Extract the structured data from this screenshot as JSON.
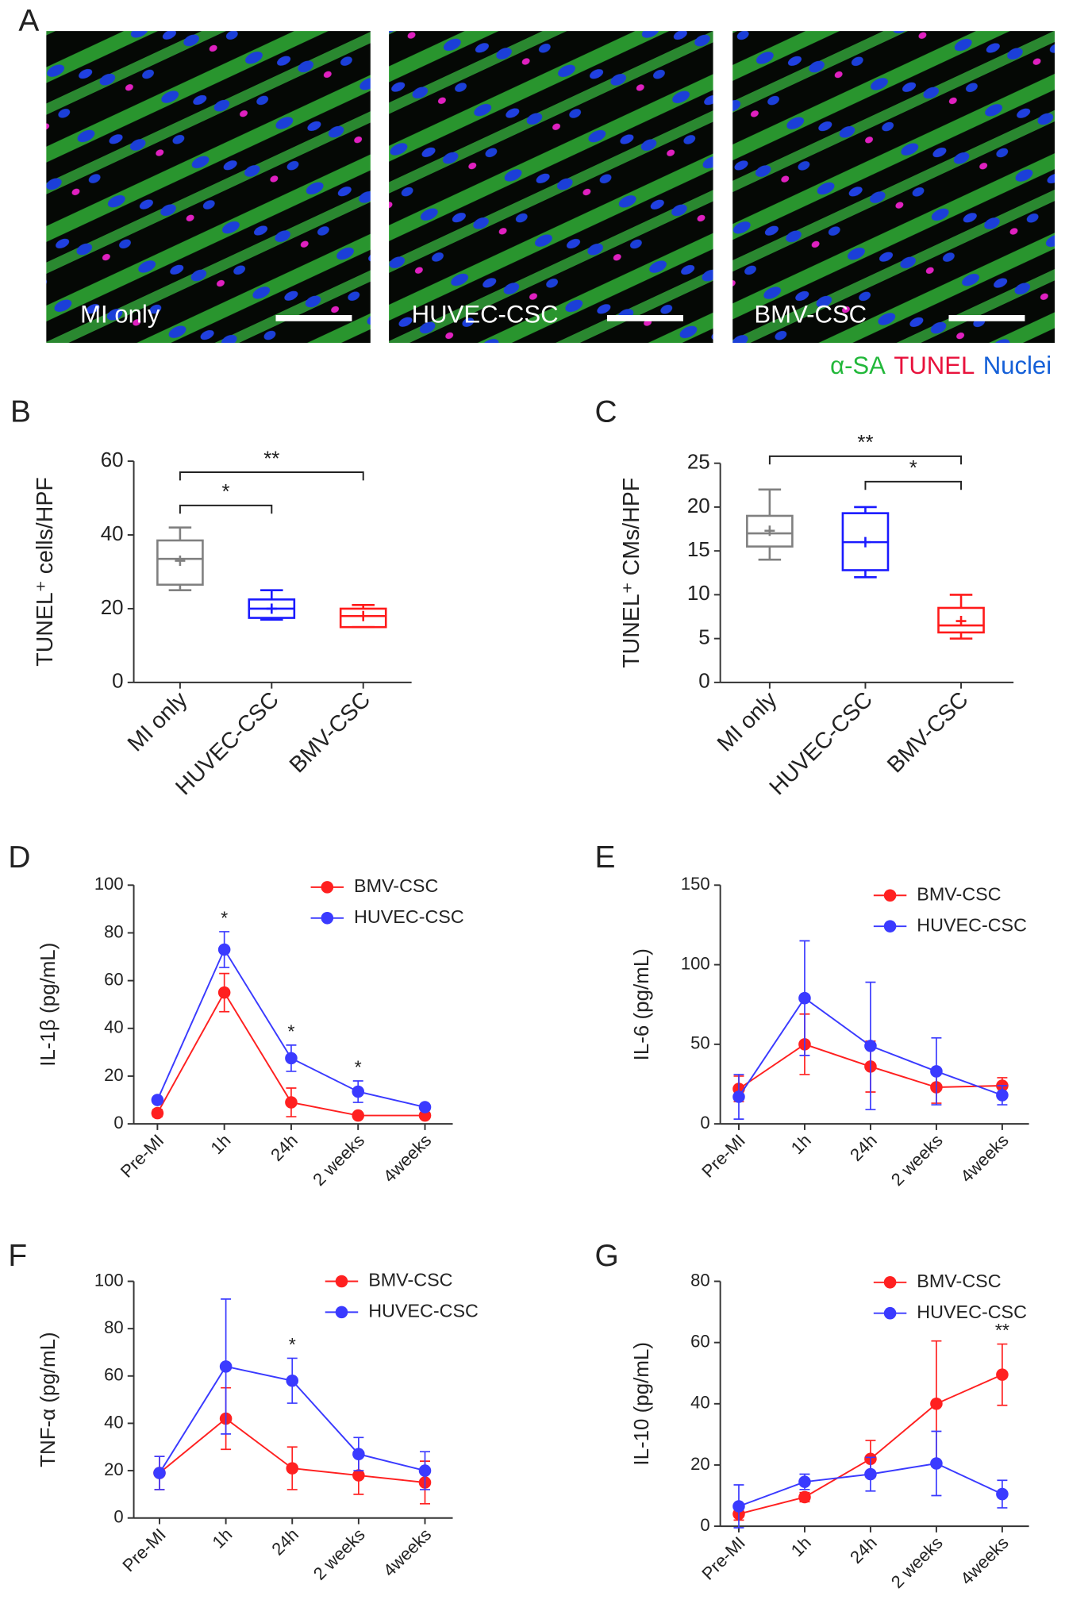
{
  "panel_a": {
    "label": "A",
    "images": [
      "MI only",
      "HUVEC-CSC",
      "BMV-CSC"
    ],
    "legend": [
      {
        "text": "α-SA",
        "color": "#22b83a"
      },
      {
        "text": "TUNEL",
        "color": "#e8123c"
      },
      {
        "text": "Nuclei",
        "color": "#1560d8"
      }
    ]
  },
  "chart_data": [
    {
      "type": "box",
      "label": "B",
      "ylabel": "TUNEL⁺ cells/HPF",
      "categories": [
        "MI only",
        "HUVEC-CSC",
        "BMV-CSC"
      ],
      "boxes": [
        {
          "min": 25,
          "q1": 26.5,
          "median": 33.5,
          "q3": 38.5,
          "max": 42,
          "mean": 33,
          "color": "#808080"
        },
        {
          "min": 17,
          "q1": 17.5,
          "median": 20,
          "q3": 22.5,
          "max": 25,
          "mean": 20,
          "color": "#1a1aff"
        },
        {
          "min": 15,
          "q1": 15,
          "median": 18,
          "q3": 20,
          "max": 21,
          "mean": 18,
          "color": "#ff1a1a"
        }
      ],
      "ylim": [
        0,
        60
      ],
      "yticks": [
        0,
        20,
        40,
        60
      ],
      "brackets": [
        {
          "x": [
            0,
            1
          ],
          "y": 48,
          "label": "*"
        },
        {
          "x": [
            0,
            2
          ],
          "y": 57,
          "label": "**"
        }
      ]
    },
    {
      "type": "box",
      "label": "C",
      "ylabel": "TUNEL⁺ CMs/HPF",
      "categories": [
        "MI only",
        "HUVEC-CSC",
        "BMV-CSC"
      ],
      "boxes": [
        {
          "min": 14,
          "q1": 15.5,
          "median": 17,
          "q3": 19,
          "max": 22,
          "mean": 17.3,
          "color": "#808080"
        },
        {
          "min": 12,
          "q1": 12.8,
          "median": 16,
          "q3": 19.3,
          "max": 20,
          "mean": 16,
          "color": "#1a1aff"
        },
        {
          "min": 5,
          "q1": 5.7,
          "median": 6.5,
          "q3": 8.5,
          "max": 10,
          "mean": 7,
          "color": "#ff1a1a"
        }
      ],
      "ylim": [
        0,
        25
      ],
      "yticks": [
        0,
        5,
        10,
        15,
        20,
        25
      ],
      "brackets": [
        {
          "x": [
            0,
            2
          ],
          "y": 25.8,
          "label": "**"
        },
        {
          "x": [
            1,
            2
          ],
          "y": 22.9,
          "label": "*"
        }
      ]
    },
    {
      "type": "line",
      "label": "D",
      "ylabel": "IL-1β (pg/mL)",
      "categories": [
        "Pre-MI",
        "1h",
        "24h",
        "2 weeks",
        "4weeks"
      ],
      "series": [
        {
          "name": "BMV-CSC",
          "color": "#ff2020",
          "values": [
            4.5,
            55,
            9,
            3.5,
            3.5
          ],
          "errors": [
            1.5,
            8,
            6,
            0.5,
            0.5
          ]
        },
        {
          "name": "HUVEC-CSC",
          "color": "#3a3aff",
          "values": [
            10,
            73,
            27.5,
            13.5,
            7
          ],
          "errors": [
            1,
            7.5,
            5.5,
            4.5,
            0.5
          ]
        }
      ],
      "ylim": [
        0,
        100
      ],
      "yticks": [
        0,
        20,
        40,
        60,
        80,
        100
      ],
      "stars": [
        null,
        "*",
        "*",
        "*",
        null
      ],
      "legend": "upper right"
    },
    {
      "type": "line",
      "label": "E",
      "ylabel": "IL-6 (pg/mL)",
      "categories": [
        "Pre-MI",
        "1h",
        "24h",
        "2 weeks",
        "4weeks"
      ],
      "series": [
        {
          "name": "BMV-CSC",
          "color": "#ff2020",
          "values": [
            22,
            50,
            36,
            23,
            24
          ],
          "errors": [
            8,
            19,
            16,
            10,
            5
          ]
        },
        {
          "name": "HUVEC-CSC",
          "color": "#3a3aff",
          "values": [
            17,
            79,
            49,
            33,
            18
          ],
          "errors": [
            14,
            36,
            40,
            21,
            6
          ]
        }
      ],
      "ylim": [
        0,
        150
      ],
      "yticks": [
        0,
        50,
        100,
        150
      ],
      "legend": "upper right"
    },
    {
      "type": "line",
      "label": "F",
      "ylabel": "TNF-α (pg/mL)",
      "categories": [
        "Pre-MI",
        "1h",
        "24h",
        "2 weeks",
        "4weeks"
      ],
      "series": [
        {
          "name": "BMV-CSC",
          "color": "#ff2020",
          "values": [
            19,
            42,
            21,
            18,
            15
          ],
          "errors": [
            7,
            13,
            9,
            8,
            9
          ]
        },
        {
          "name": "HUVEC-CSC",
          "color": "#3a3aff",
          "values": [
            19,
            64,
            58,
            27,
            20
          ],
          "errors": [
            7,
            28.5,
            9.5,
            7,
            8
          ]
        }
      ],
      "ylim": [
        0,
        100
      ],
      "yticks": [
        0,
        20,
        40,
        60,
        80,
        100
      ],
      "stars": [
        null,
        null,
        "*",
        null,
        null
      ],
      "legend": "upper right"
    },
    {
      "type": "line",
      "label": "G",
      "ylabel": "IL-10 (pg/mL)",
      "categories": [
        "Pre-MI",
        "1h",
        "24h",
        "2 weeks",
        "4weeks"
      ],
      "series": [
        {
          "name": "BMV-CSC",
          "color": "#ff2020",
          "values": [
            4,
            9.5,
            22,
            40,
            49.5
          ],
          "errors": [
            2,
            1.5,
            6,
            20.5,
            10
          ]
        },
        {
          "name": "HUVEC-CSC",
          "color": "#3a3aff",
          "values": [
            6.5,
            14.5,
            17,
            20.5,
            10.5
          ],
          "errors": [
            7,
            2.5,
            5.5,
            10.5,
            4.5
          ]
        }
      ],
      "ylim": [
        0,
        80
      ],
      "yticks": [
        0,
        20,
        40,
        60,
        80
      ],
      "stars": [
        null,
        null,
        null,
        null,
        "**"
      ],
      "legend": "upper right"
    }
  ]
}
